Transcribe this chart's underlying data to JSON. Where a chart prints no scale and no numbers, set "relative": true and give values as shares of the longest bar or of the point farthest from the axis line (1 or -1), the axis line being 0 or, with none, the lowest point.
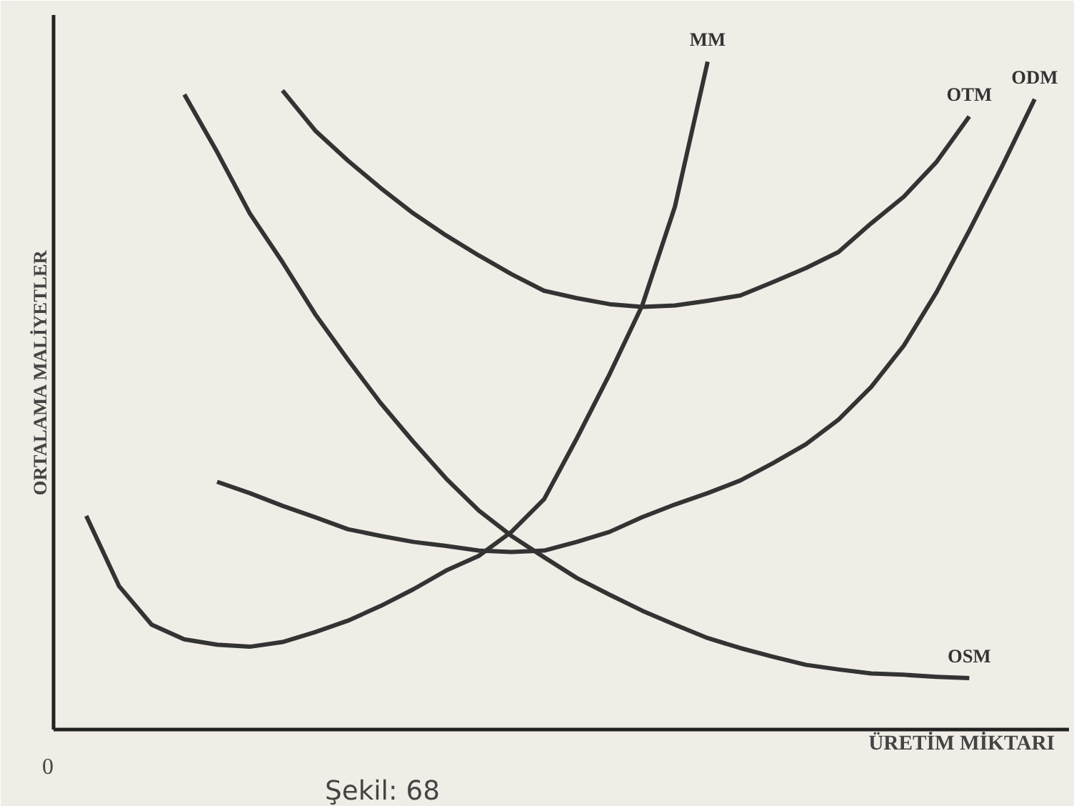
{
  "chart_data": {
    "type": "line",
    "relative": true,
    "xlabel": "ÜRETİM MİKTARI",
    "ylabel": "ORTALAMA MALİYETLER",
    "annotations": [
      "0",
      "Şekil: 68"
    ],
    "marker": "none",
    "line_style": "solid",
    "categories": [
      null,
      null,
      null,
      null,
      null,
      null,
      null,
      null,
      null,
      null,
      null,
      null,
      null,
      null,
      null,
      null,
      null,
      null,
      null,
      null,
      null,
      null,
      null,
      null,
      null,
      null,
      null,
      null,
      null,
      null,
      null
    ],
    "series": [
      {
        "name": "MM",
        "color": "#333333",
        "values": [
          null,
          0.32,
          0.215,
          0.157,
          0.135,
          0.127,
          0.124,
          0.131,
          0.146,
          0.163,
          0.185,
          0.21,
          0.238,
          0.26,
          0.296,
          0.345,
          0.436,
          0.532,
          0.635,
          0.783,
          1.0,
          null,
          null,
          null,
          null,
          null,
          null,
          null,
          null,
          null,
          null
        ]
      },
      {
        "name": "OTM",
        "color": "#333333",
        "values": [
          null,
          null,
          null,
          null,
          null,
          null,
          null,
          0.957,
          0.897,
          0.852,
          0.811,
          0.773,
          0.74,
          0.71,
          0.682,
          0.657,
          0.646,
          0.637,
          0.633,
          0.635,
          0.642,
          0.65,
          0.67,
          0.691,
          0.715,
          0.758,
          0.798,
          0.85,
          0.918,
          null,
          null
        ]
      },
      {
        "name": "ODM",
        "color": "#333333",
        "values": [
          null,
          null,
          null,
          null,
          null,
          0.371,
          0.354,
          0.335,
          0.318,
          0.3,
          0.29,
          0.281,
          0.275,
          0.268,
          0.266,
          0.268,
          0.281,
          0.296,
          0.318,
          0.337,
          0.354,
          0.373,
          0.399,
          0.427,
          0.464,
          0.513,
          0.575,
          0.655,
          0.747,
          0.843,
          0.944
        ]
      },
      {
        "name": "OSM",
        "color": "#333333",
        "values": [
          null,
          null,
          null,
          null,
          0.951,
          0.865,
          0.773,
          0.7,
          0.622,
          0.554,
          0.489,
          0.431,
          0.376,
          0.328,
          0.29,
          0.258,
          0.227,
          0.202,
          0.178,
          0.157,
          0.137,
          0.122,
          0.109,
          0.097,
          0.09,
          0.084,
          0.082,
          0.079,
          0.077,
          null,
          null
        ]
      }
    ]
  }
}
